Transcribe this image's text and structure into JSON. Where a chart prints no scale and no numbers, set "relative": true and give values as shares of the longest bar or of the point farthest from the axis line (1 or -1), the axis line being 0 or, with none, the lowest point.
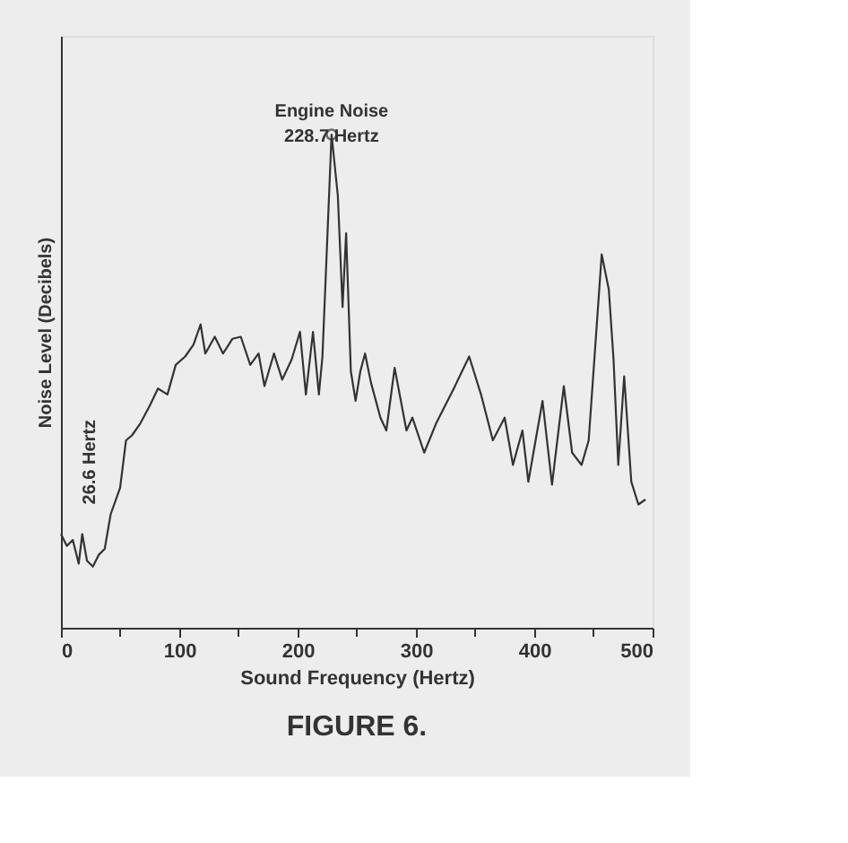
{
  "chart_data": {
    "type": "line",
    "relative": true,
    "title": "FIGURE 6.",
    "xlabel": "Sound Frequency (Hertz)",
    "ylabel": "Noise Level (Decibels)",
    "xlim": [
      0,
      500
    ],
    "xticks": [
      0,
      {
        "value": 50,
        "label": null
      },
      100,
      {
        "value": 150,
        "label": null
      },
      200,
      {
        "value": 250,
        "label": null
      },
      300,
      {
        "value": 350,
        "label": null
      },
      400,
      {
        "value": 450,
        "label": null
      },
      500
    ],
    "tick_labels": "x",
    "grid": false,
    "marker": "none",
    "line_style": "solid",
    "series": [
      {
        "color": "#333333",
        "x": [
          0,
          5,
          10,
          15,
          18,
          22,
          27,
          32,
          37,
          42,
          50,
          55,
          60,
          67,
          75,
          82,
          90,
          97,
          105,
          112,
          118,
          122,
          130,
          137,
          145,
          152,
          160,
          167,
          172,
          180,
          187,
          195,
          202,
          207,
          213,
          218,
          221,
          228.7,
          234,
          238,
          241,
          245,
          249,
          253,
          257,
          262,
          270,
          275,
          282,
          292,
          297,
          307,
          317,
          332,
          345,
          355,
          365,
          375,
          382,
          390,
          395,
          407,
          415,
          425,
          432,
          440,
          446,
          457,
          463,
          467,
          471,
          476,
          482,
          488,
          494
        ],
        "values": [
          0.19,
          0.166,
          0.178,
          0.13,
          0.19,
          0.136,
          0.124,
          0.148,
          0.16,
          0.23,
          0.284,
          0.38,
          0.39,
          0.414,
          0.45,
          0.485,
          0.473,
          0.533,
          0.55,
          0.574,
          0.615,
          0.556,
          0.59,
          0.556,
          0.586,
          0.59,
          0.533,
          0.556,
          0.49,
          0.556,
          0.503,
          0.544,
          0.6,
          0.473,
          0.6,
          0.473,
          0.55,
          1.0,
          0.876,
          0.65,
          0.8,
          0.52,
          0.46,
          0.52,
          0.556,
          0.497,
          0.426,
          0.4,
          0.527,
          0.4,
          0.426,
          0.355,
          0.414,
          0.485,
          0.55,
          0.473,
          0.38,
          0.426,
          0.33,
          0.4,
          0.296,
          0.46,
          0.29,
          0.49,
          0.355,
          0.33,
          0.38,
          0.757,
          0.686,
          0.544,
          0.33,
          0.51,
          0.296,
          0.25,
          0.26
        ]
      }
    ],
    "annotations": [
      {
        "text": "Engine Noise\n228.7 Hertz",
        "x": 228.7,
        "y": 1.0
      },
      "26.6 Hertz"
    ]
  }
}
